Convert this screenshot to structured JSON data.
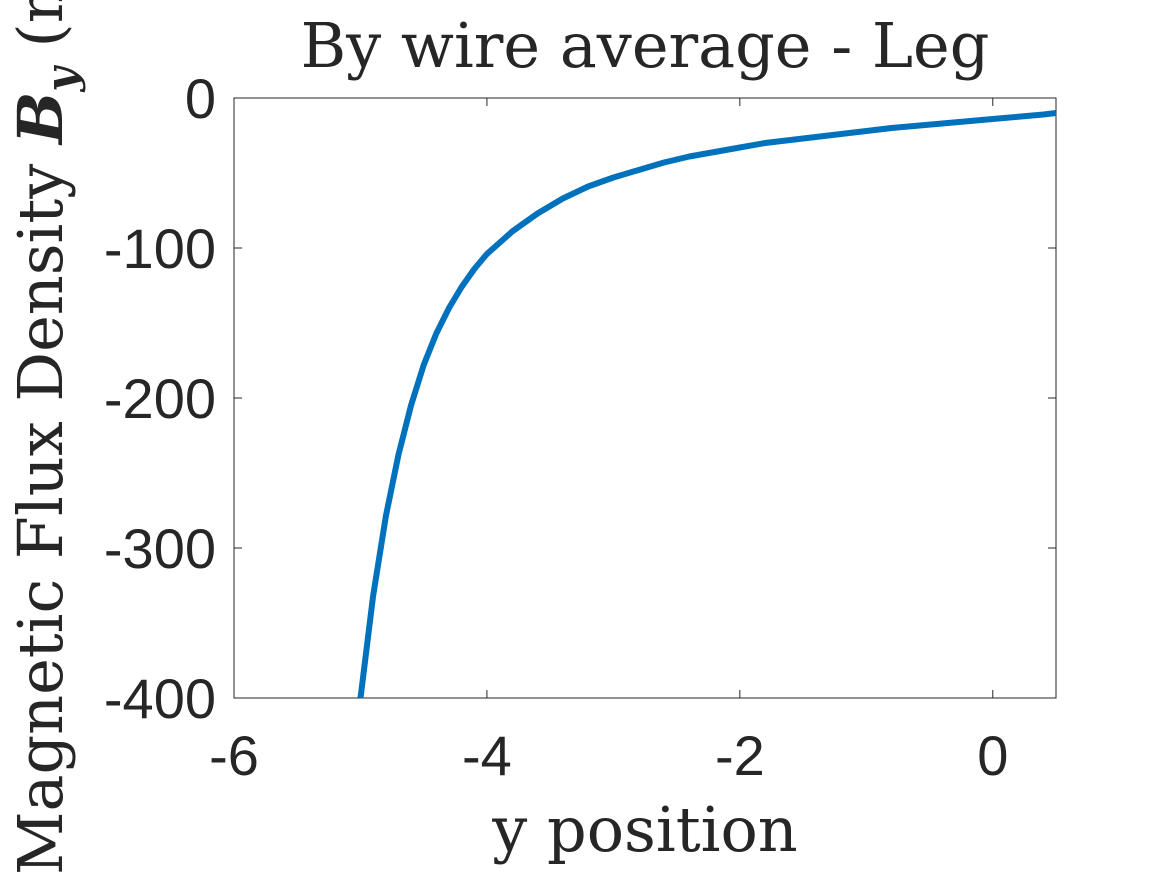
{
  "chart_data": {
    "type": "line",
    "title": "By wire average - Leg",
    "xlabel": "y position",
    "ylabel_prefix": "Magnetic Flux Density ",
    "ylabel_symbol": "B",
    "ylabel_subscript": "y",
    "ylabel_suffix": " (m",
    "xlim": [
      -6,
      0.5
    ],
    "ylim": [
      -400,
      0
    ],
    "x_ticks": [
      -6,
      -4,
      -2,
      0
    ],
    "y_ticks": [
      0,
      -100,
      -200,
      -300,
      -400
    ],
    "x_tick_labels": [
      "-6",
      "-4",
      "-2",
      "0"
    ],
    "y_tick_labels": [
      "0",
      "-100",
      "-200",
      "-300",
      "-400"
    ],
    "grid": false,
    "legend": "none",
    "series": [
      {
        "color": "#0072BD",
        "x": [
          -5.0,
          -4.9,
          -4.8,
          -4.7,
          -4.6,
          -4.5,
          -4.4,
          -4.3,
          -4.2,
          -4.1,
          -4.0,
          -3.8,
          -3.6,
          -3.4,
          -3.2,
          -3.0,
          -2.8,
          -2.6,
          -2.4,
          -2.2,
          -2.0,
          -1.8,
          -1.6,
          -1.4,
          -1.2,
          -1.0,
          -0.8,
          -0.6,
          -0.4,
          -0.2,
          0.0,
          0.2,
          0.4,
          0.5
        ],
        "y": [
          -400,
          -332,
          -279,
          -238,
          -205,
          -178,
          -157,
          -140,
          -126,
          -114,
          -104,
          -89,
          -77,
          -67,
          -59,
          -53,
          -48,
          -43,
          -39,
          -36,
          -33,
          -30,
          -28,
          -26,
          -24,
          -22,
          -20,
          -18.5,
          -17,
          -15.5,
          -14,
          -12.5,
          -11,
          -10
        ]
      }
    ]
  }
}
